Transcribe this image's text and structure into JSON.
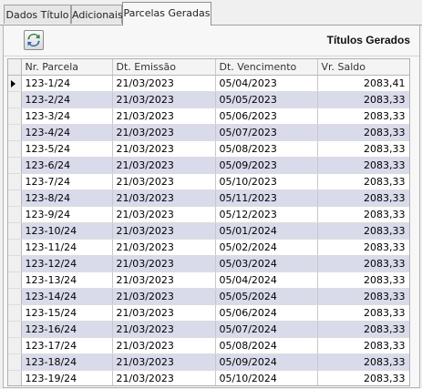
{
  "tabs": [
    {
      "label": "Dados Título"
    },
    {
      "label": "Adicionais"
    },
    {
      "label": "Parcelas Geradas"
    }
  ],
  "toolbar": {
    "title": "Títulos Gerados",
    "refresh_icon": "refresh-icon"
  },
  "grid": {
    "columns": [
      "Nr. Parcela",
      "Dt. Emissão",
      "Dt. Vencimento",
      "Vr. Saldo"
    ],
    "current_row_icon": "row-pointer-icon",
    "rows": [
      {
        "nr": "123-1/24",
        "emissao": "21/03/2023",
        "vencimento": "05/04/2023",
        "saldo": "2083,41"
      },
      {
        "nr": "123-2/24",
        "emissao": "21/03/2023",
        "vencimento": "05/05/2023",
        "saldo": "2083,33"
      },
      {
        "nr": "123-3/24",
        "emissao": "21/03/2023",
        "vencimento": "05/06/2023",
        "saldo": "2083,33"
      },
      {
        "nr": "123-4/24",
        "emissao": "21/03/2023",
        "vencimento": "05/07/2023",
        "saldo": "2083,33"
      },
      {
        "nr": "123-5/24",
        "emissao": "21/03/2023",
        "vencimento": "05/08/2023",
        "saldo": "2083,33"
      },
      {
        "nr": "123-6/24",
        "emissao": "21/03/2023",
        "vencimento": "05/09/2023",
        "saldo": "2083,33"
      },
      {
        "nr": "123-7/24",
        "emissao": "21/03/2023",
        "vencimento": "05/10/2023",
        "saldo": "2083,33"
      },
      {
        "nr": "123-8/24",
        "emissao": "21/03/2023",
        "vencimento": "05/11/2023",
        "saldo": "2083,33"
      },
      {
        "nr": "123-9/24",
        "emissao": "21/03/2023",
        "vencimento": "05/12/2023",
        "saldo": "2083,33"
      },
      {
        "nr": "123-10/24",
        "emissao": "21/03/2023",
        "vencimento": "05/01/2024",
        "saldo": "2083,33"
      },
      {
        "nr": "123-11/24",
        "emissao": "21/03/2023",
        "vencimento": "05/02/2024",
        "saldo": "2083,33"
      },
      {
        "nr": "123-12/24",
        "emissao": "21/03/2023",
        "vencimento": "05/03/2024",
        "saldo": "2083,33"
      },
      {
        "nr": "123-13/24",
        "emissao": "21/03/2023",
        "vencimento": "05/04/2024",
        "saldo": "2083,33"
      },
      {
        "nr": "123-14/24",
        "emissao": "21/03/2023",
        "vencimento": "05/05/2024",
        "saldo": "2083,33"
      },
      {
        "nr": "123-15/24",
        "emissao": "21/03/2023",
        "vencimento": "05/06/2024",
        "saldo": "2083,33"
      },
      {
        "nr": "123-16/24",
        "emissao": "21/03/2023",
        "vencimento": "05/07/2024",
        "saldo": "2083,33"
      },
      {
        "nr": "123-17/24",
        "emissao": "21/03/2023",
        "vencimento": "05/08/2024",
        "saldo": "2083,33"
      },
      {
        "nr": "123-18/24",
        "emissao": "21/03/2023",
        "vencimento": "05/09/2024",
        "saldo": "2083,33"
      },
      {
        "nr": "123-19/24",
        "emissao": "21/03/2023",
        "vencimento": "05/10/2024",
        "saldo": "2083,33"
      }
    ]
  }
}
